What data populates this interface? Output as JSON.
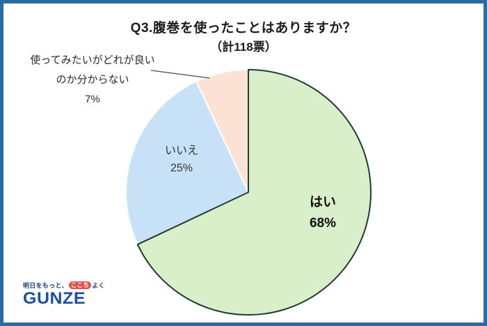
{
  "header": {
    "title": "Q3.腹巻を使ったことはありますか？",
    "subtitle": "（計118票）",
    "total_votes": 118
  },
  "chart_data": {
    "type": "pie",
    "title": "Q3.腹巻を使ったことはありますか？",
    "subtitle": "（計118票）",
    "start_angle_deg": 0,
    "direction": "clockwise",
    "slices": [
      {
        "key": "yes",
        "label": "はい",
        "pct": 68,
        "color": "#d8efca",
        "stroke": "#1f3a32"
      },
      {
        "key": "no",
        "label": "いいえ",
        "pct": 25,
        "color": "#c7e2f6",
        "stroke": "#ffffff"
      },
      {
        "key": "unsure",
        "label": "使ってみたいがどれが良いのか分からない",
        "pct": 7,
        "color": "#fbe2d5",
        "stroke": "#ffffff"
      }
    ]
  },
  "labels": {
    "yes": {
      "name": "はい",
      "pct": "68%"
    },
    "no": {
      "name": "いいえ",
      "pct": "25%"
    },
    "unsure": {
      "line1": "使ってみたいがどれが良い",
      "line2": "のか分からない",
      "pct": "7%"
    }
  },
  "logo": {
    "tagline_pre": "明日をもっと、",
    "tagline_highlight": "ここち",
    "tagline_post": "よく",
    "wordmark": "GUNZE"
  },
  "colors": {
    "frame_border": "#2b6aa4",
    "slice_yes": "#d8efca",
    "slice_no": "#c7e2f6",
    "slice_unsure": "#fbe2d5",
    "slice_outline": "#1f3a32",
    "leader_line": "#4a4a4a",
    "logo_blue": "#1d4f9e",
    "badge_red": "#e0514e"
  }
}
